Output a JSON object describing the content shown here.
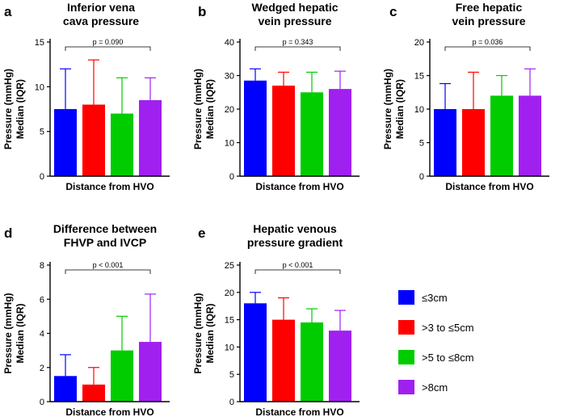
{
  "chart_data": [
    {
      "panel": "a",
      "type": "bar",
      "title": [
        "Inferior vena",
        "cava pressure"
      ],
      "ylabel": [
        "Pressure (mmHg)",
        "Median (IQR)"
      ],
      "xlabel": "Distance from HVO",
      "ylim": [
        0,
        15
      ],
      "yticks": [
        0,
        5,
        10,
        15
      ],
      "categories": [
        "≤3cm",
        ">3 to ≤5cm",
        ">5 to ≤8cm",
        ">8cm"
      ],
      "values": [
        7.5,
        8.0,
        7.0,
        8.5
      ],
      "errors": [
        12.0,
        13.0,
        11.0,
        11.0
      ],
      "annotation": "p = 0.090"
    },
    {
      "panel": "b",
      "type": "bar",
      "title": [
        "Wedged hepatic",
        "vein pressure"
      ],
      "ylabel": [
        "Pressure (mmHg)",
        "Median (IQR)"
      ],
      "xlabel": "Distance from HVO",
      "ylim": [
        0,
        40
      ],
      "yticks": [
        0,
        10,
        20,
        30,
        40
      ],
      "categories": [
        "≤3cm",
        ">3 to ≤5cm",
        ">5 to ≤8cm",
        ">8cm"
      ],
      "values": [
        28.5,
        27.0,
        25.0,
        26.0
      ],
      "errors": [
        32.0,
        31.0,
        31.0,
        31.3
      ],
      "annotation": "p = 0.343"
    },
    {
      "panel": "c",
      "type": "bar",
      "title": [
        "Free hepatic",
        "vein pressure"
      ],
      "ylabel": [
        "Pressure (mmHg)",
        "Median (IQR)"
      ],
      "xlabel": "Distance from HVO",
      "ylim": [
        0,
        20
      ],
      "yticks": [
        0,
        5,
        10,
        15,
        20
      ],
      "categories": [
        "≤3cm",
        ">3 to ≤5cm",
        ">5 to ≤8cm",
        ">8cm"
      ],
      "values": [
        10.0,
        10.0,
        12.0,
        12.0
      ],
      "errors": [
        13.8,
        15.5,
        15.0,
        16.0
      ],
      "annotation": "p = 0.036"
    },
    {
      "panel": "d",
      "type": "bar",
      "title": [
        "Difference between",
        "FHVP and IVCP"
      ],
      "ylabel": [
        "Pressure (mmHg)",
        "Median (IQR)"
      ],
      "xlabel": "Distance from HVO",
      "ylim": [
        0,
        8
      ],
      "yticks": [
        0,
        2,
        4,
        6,
        8
      ],
      "categories": [
        "≤3cm",
        ">3 to ≤5cm",
        ">5 to ≤8cm",
        ">8cm"
      ],
      "values": [
        1.5,
        1.0,
        3.0,
        3.5
      ],
      "errors": [
        2.75,
        2.0,
        5.0,
        6.3
      ],
      "annotation": "p < 0.001"
    },
    {
      "panel": "e",
      "type": "bar",
      "title": [
        "Hepatic venous",
        "pressure gradient"
      ],
      "ylabel": [
        "Pressure (mmHg)",
        "Median (IQR)"
      ],
      "xlabel": "Distance from HVO",
      "ylim": [
        0,
        25
      ],
      "yticks": [
        0,
        5,
        10,
        15,
        20,
        25
      ],
      "categories": [
        "≤3cm",
        ">3 to ≤5cm",
        ">5 to ≤8cm",
        ">8cm"
      ],
      "values": [
        18.0,
        15.0,
        14.5,
        13.0
      ],
      "errors": [
        20.0,
        19.0,
        17.0,
        16.7
      ],
      "annotation": "p < 0.001"
    }
  ],
  "legend": [
    {
      "label": "≤3cm",
      "color": "#0000ff"
    },
    {
      "label": ">3 to ≤5cm",
      "color": "#ff0000"
    },
    {
      "label": ">5 to ≤8cm",
      "color": "#00cc00"
    },
    {
      "label": ">8cm",
      "color": "#a020f0"
    }
  ]
}
